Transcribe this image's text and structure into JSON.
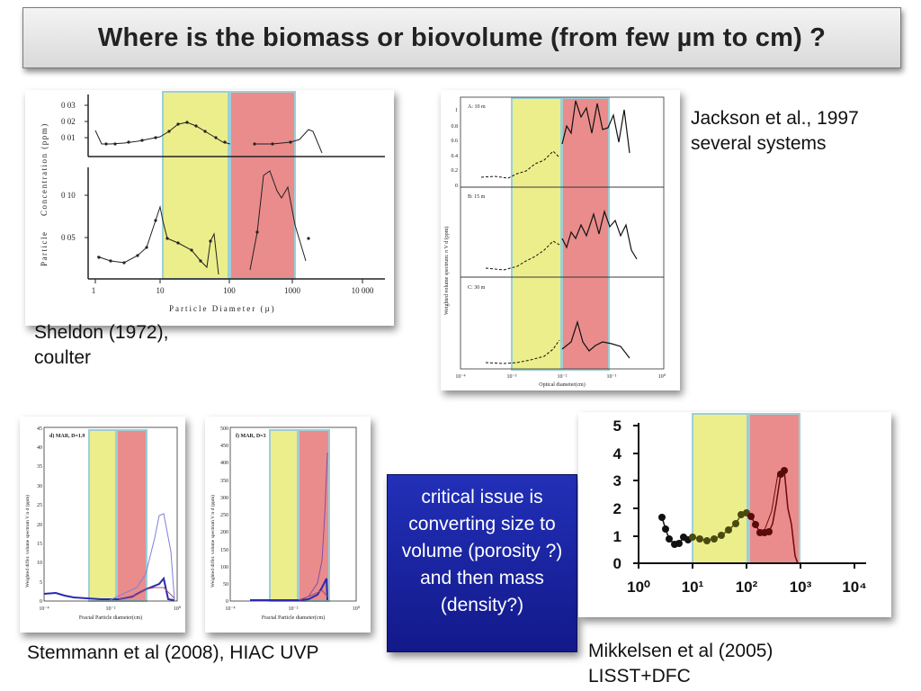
{
  "title": "Where is the biomass or biovolume  (from few µm to cm) ?",
  "captions": {
    "sheldon_line1": "Sheldon (1972),",
    "sheldon_line2": "coulter",
    "jackson_line1": "Jackson et al., 1997",
    "jackson_line2": "several systems",
    "stemmann": "Stemmann et al (2008), HIAC UVP",
    "mikkelsen_line1": "Mikkelsen et al (2005)",
    "mikkelsen_line2": "LISST+DFC"
  },
  "callout": "critical issue is converting size to volume (porosity ?) and then mass (density?)",
  "colors": {
    "yellow_band": "#ecee8c",
    "red_band": "#ea8c8c",
    "callout_bg": "#1a24a0"
  },
  "sheldon_plot": {
    "yaxis_label_1": "Particle",
    "yaxis_label_2": "Concentration (ppm)",
    "xaxis_label": "Particle     Diameter   (µ)",
    "top_ticks": [
      "0 03",
      "0 02",
      "0 01"
    ],
    "bottom_ticks": [
      "0 10",
      "0 05"
    ],
    "x_ticks": [
      "1",
      "10",
      "100",
      "1000",
      "10 000"
    ]
  },
  "jackson_plot": {
    "panels": [
      "A: 10 m",
      "B: 15 m",
      "C: 30 m"
    ],
    "yaxis_label": "Weighted volume spectrum: π V d (ppm)",
    "xaxis_label": "Optical diameter(cm)",
    "y_ticks": [
      "1",
      "0.8",
      "0.6",
      "0.4",
      "0.2",
      "0"
    ],
    "x_ticks": [
      "10⁻⁴",
      "10⁻³",
      "10⁻²",
      "10⁻¹",
      "10⁰"
    ]
  },
  "stemmann_plot_d": {
    "panel_label": "d) MAR, D=1.9",
    "yaxis_label": "Weighted differ. volume spectrum  V n d  (ppm)",
    "xaxis_label": "Fractal Particle diameter(cm)",
    "y_ticks": [
      "45",
      "40",
      "35",
      "30",
      "25",
      "20",
      "15",
      "10",
      "5",
      "0"
    ],
    "x_ticks": [
      "10⁻⁴",
      "10⁻²",
      "10⁰"
    ]
  },
  "stemmann_plot_f": {
    "panel_label": "f) MAR, D=3",
    "yaxis_label": "Weighted differ. volume spectrum  V n d  (ppm)",
    "xaxis_label": "Fractal Particle diameter(cm)",
    "y_ticks": [
      "500",
      "450",
      "400",
      "350",
      "300",
      "250",
      "200",
      "150",
      "100",
      "50",
      "0"
    ],
    "x_ticks": [
      "10⁻⁴",
      "10⁻²",
      "10⁰"
    ]
  },
  "mikkelsen_plot": {
    "y_ticks": [
      "5",
      "4",
      "3",
      "2",
      "1",
      "0"
    ],
    "x_ticks": [
      "10⁰",
      "10¹",
      "10²",
      "10³",
      "10⁴"
    ]
  }
}
